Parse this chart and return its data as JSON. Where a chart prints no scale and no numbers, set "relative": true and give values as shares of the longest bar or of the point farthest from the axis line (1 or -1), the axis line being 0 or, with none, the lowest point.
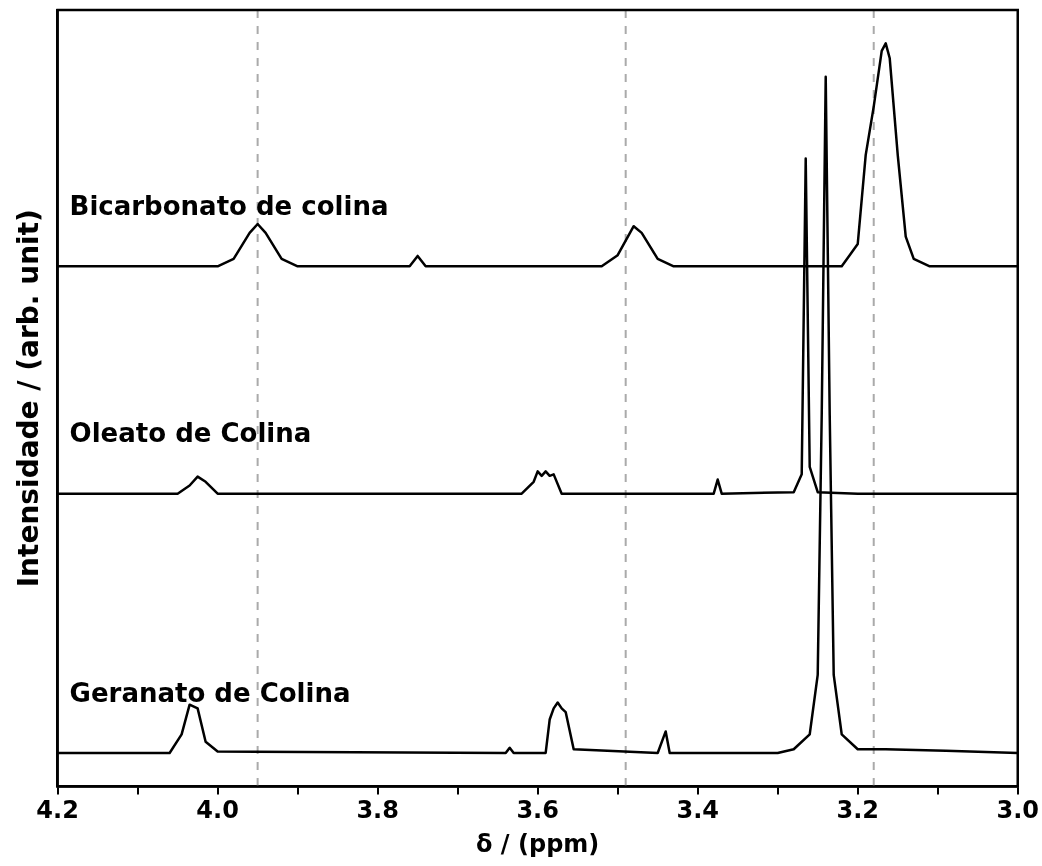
{
  "chart_data": {
    "type": "line",
    "xlabel": "δ / (ppm)",
    "ylabel": "Intensidade / (arb. unit)",
    "relative": true,
    "legend": false,
    "grid": false,
    "marker": "none",
    "xlim": [
      4.2,
      3.0
    ],
    "xticks": [
      4.2,
      {
        "value": 4.1,
        "label": null
      },
      {
        "value": 4,
        "label": "4.0"
      },
      {
        "value": 3.9,
        "label": null
      },
      3.8,
      {
        "value": 3.7,
        "label": null
      },
      3.6,
      {
        "value": 3.5,
        "label": null
      },
      3.4,
      {
        "value": 3.3,
        "label": null
      },
      3.2,
      {
        "value": 3.1,
        "label": null
      },
      {
        "value": 3,
        "label": "3.0"
      }
    ],
    "ref_lines": [
      {
        "axis": "x",
        "value": 3.95,
        "color": "#aaaaaa",
        "line_style": "dashed"
      },
      {
        "axis": "x",
        "value": 3.49,
        "color": "#aaaaaa",
        "line_style": "dashed"
      },
      {
        "axis": "x",
        "value": 3.18,
        "color": "#aaaaaa",
        "line_style": "dashed"
      }
    ],
    "series": [
      {
        "name": "Bicarbonato de colina",
        "color": "#000000",
        "x": [
          4.2,
          4.0,
          3.98,
          3.96,
          3.95,
          3.94,
          3.92,
          3.9,
          3.76,
          3.75,
          3.74,
          3.52,
          3.5,
          3.48,
          3.47,
          3.45,
          3.43,
          3.22,
          3.2,
          3.19,
          3.18,
          3.17,
          3.165,
          3.16,
          3.15,
          3.14,
          3.13,
          3.12,
          3.11,
          3.0
        ],
        "values": [
          0.7,
          0.7,
          0.71,
          0.745,
          0.757,
          0.745,
          0.71,
          0.7,
          0.7,
          0.714,
          0.7,
          0.7,
          0.715,
          0.754,
          0.745,
          0.71,
          0.7,
          0.7,
          0.73,
          0.85,
          0.915,
          0.99,
          1.0,
          0.98,
          0.85,
          0.74,
          0.71,
          0.705,
          0.7,
          0.7
        ]
      },
      {
        "name": "Oleato de Colina",
        "color": "#000000",
        "x": [
          4.2,
          4.05,
          4.035,
          4.025,
          4.015,
          4.0,
          3.62,
          3.605,
          3.6,
          3.595,
          3.59,
          3.585,
          3.58,
          3.57,
          3.38,
          3.375,
          3.37,
          3.28,
          3.27,
          3.265,
          3.26,
          3.25,
          3.2,
          3.0
        ],
        "values": [
          0.394,
          0.394,
          0.405,
          0.417,
          0.41,
          0.394,
          0.394,
          0.41,
          0.424,
          0.418,
          0.424,
          0.418,
          0.42,
          0.394,
          0.394,
          0.413,
          0.394,
          0.396,
          0.42,
          0.845,
          0.43,
          0.396,
          0.394,
          0.394
        ]
      },
      {
        "name": "Geranato de Colina",
        "color": "#000000",
        "x": [
          4.2,
          4.06,
          4.045,
          4.035,
          4.025,
          4.015,
          4.0,
          3.64,
          3.635,
          3.63,
          3.59,
          3.585,
          3.58,
          3.575,
          3.57,
          3.565,
          3.555,
          3.45,
          3.44,
          3.435,
          3.3,
          3.28,
          3.26,
          3.25,
          3.245,
          3.24,
          3.235,
          3.23,
          3.22,
          3.2,
          3.165,
          3.09,
          3.0
        ],
        "values": [
          0.045,
          0.045,
          0.07,
          0.11,
          0.105,
          0.06,
          0.047,
          0.045,
          0.052,
          0.045,
          0.045,
          0.09,
          0.105,
          0.113,
          0.105,
          0.1,
          0.05,
          0.045,
          0.074,
          0.045,
          0.045,
          0.05,
          0.07,
          0.15,
          0.5,
          0.955,
          0.5,
          0.15,
          0.07,
          0.05,
          0.05,
          0.048,
          0.045
        ]
      }
    ]
  }
}
